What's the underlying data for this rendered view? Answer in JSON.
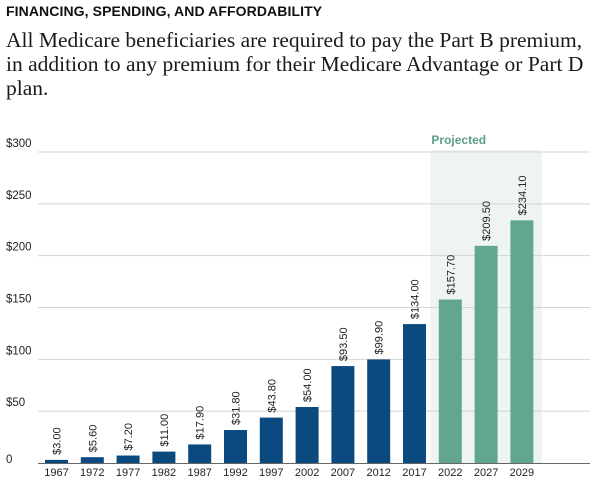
{
  "header": {
    "kicker": "FINANCING, SPENDING, AND AFFORDABILITY",
    "headline": "All Medicare beneficiaries are required to pay the Part B premium, in addition to any premium for their Medicare Advantage or Part D plan."
  },
  "chart_data": {
    "type": "bar",
    "title": "",
    "xlabel": "",
    "ylabel": "",
    "categories": [
      "1967",
      "1972",
      "1977",
      "1982",
      "1987",
      "1992",
      "1997",
      "2002",
      "2007",
      "2012",
      "2017",
      "2022",
      "2027",
      "2029"
    ],
    "values": [
      3.0,
      5.6,
      7.2,
      11.0,
      17.9,
      31.8,
      43.8,
      54.0,
      93.5,
      99.9,
      134.0,
      157.7,
      209.5,
      234.1
    ],
    "value_labels": [
      "$3.00",
      "$5.60",
      "$7.20",
      "$11.00",
      "$17.90",
      "$31.80",
      "$43.80",
      "$54.00",
      "$93.50",
      "$99.90",
      "$134.00",
      "$157.70",
      "$209.50",
      "$234.10"
    ],
    "projected": [
      false,
      false,
      false,
      false,
      false,
      false,
      false,
      false,
      false,
      false,
      false,
      true,
      true,
      true
    ],
    "projected_label": "Projected",
    "ylim": [
      0,
      300
    ],
    "yticks": [
      0,
      50,
      100,
      150,
      200,
      250,
      300
    ],
    "ytick_labels": [
      "0",
      "$50",
      "$100",
      "$150",
      "$200",
      "$250",
      "$300"
    ],
    "grid": true,
    "colors": {
      "historical": "#0a4a7f",
      "projected": "#63a690",
      "projected_band": "#eef4f0",
      "projected_label": "#5b9d86",
      "grid": "#d4d4d4"
    }
  }
}
